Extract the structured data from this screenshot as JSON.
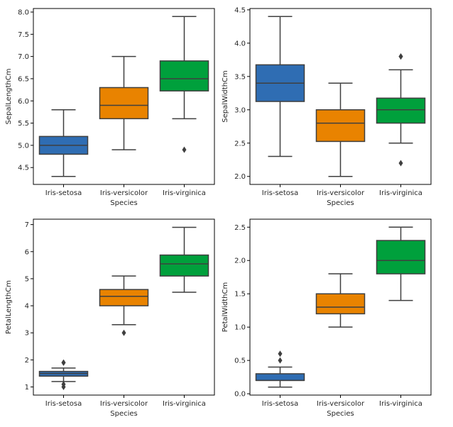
{
  "chart_data": [
    {
      "type": "box",
      "xlabel": "Species",
      "ylabel": "SepalLengthCm",
      "categories": [
        "Iris-setosa",
        "Iris-versicolor",
        "Iris-virginica"
      ],
      "ylim": [
        4.12,
        8.08
      ],
      "yticks": [
        4.5,
        5.0,
        5.5,
        6.0,
        6.5,
        7.0,
        7.5,
        8.0
      ],
      "yticklabels": [
        "4.5",
        "5.0",
        "5.5",
        "6.0",
        "6.5",
        "7.0",
        "7.5",
        "8.0"
      ],
      "boxes": [
        {
          "whislo": 4.3,
          "q1": 4.8,
          "med": 5.0,
          "q3": 5.2,
          "whishi": 5.8,
          "fliers": []
        },
        {
          "whislo": 4.9,
          "q1": 5.6,
          "med": 5.9,
          "q3": 6.3,
          "whishi": 7.0,
          "fliers": []
        },
        {
          "whislo": 5.6,
          "q1": 6.225,
          "med": 6.5,
          "q3": 6.9,
          "whishi": 7.9,
          "fliers": [
            4.9
          ]
        }
      ]
    },
    {
      "type": "box",
      "xlabel": "Species",
      "ylabel": "SepalWidthCm",
      "categories": [
        "Iris-setosa",
        "Iris-versicolor",
        "Iris-virginica"
      ],
      "ylim": [
        1.88,
        4.52
      ],
      "yticks": [
        2.0,
        2.5,
        3.0,
        3.5,
        4.0,
        4.5
      ],
      "yticklabels": [
        "2.0",
        "2.5",
        "3.0",
        "3.5",
        "4.0",
        "4.5"
      ],
      "boxes": [
        {
          "whislo": 2.3,
          "q1": 3.125,
          "med": 3.4,
          "q3": 3.675,
          "whishi": 4.4,
          "fliers": []
        },
        {
          "whislo": 2.0,
          "q1": 2.525,
          "med": 2.8,
          "q3": 3.0,
          "whishi": 3.4,
          "fliers": []
        },
        {
          "whislo": 2.5,
          "q1": 2.8,
          "med": 3.0,
          "q3": 3.175,
          "whishi": 3.6,
          "fliers": [
            3.8,
            3.8,
            2.2
          ]
        }
      ]
    },
    {
      "type": "box",
      "xlabel": "Species",
      "ylabel": "PetalLengthCm",
      "categories": [
        "Iris-setosa",
        "Iris-versicolor",
        "Iris-virginica"
      ],
      "ylim": [
        0.7,
        7.2
      ],
      "yticks": [
        1,
        2,
        3,
        4,
        5,
        6,
        7
      ],
      "yticklabels": [
        "1",
        "2",
        "3",
        "4",
        "5",
        "6",
        "7"
      ],
      "boxes": [
        {
          "whislo": 1.2,
          "q1": 1.4,
          "med": 1.5,
          "q3": 1.575,
          "whishi": 1.7,
          "fliers": [
            1.9,
            1.9,
            1.1,
            1.0
          ]
        },
        {
          "whislo": 3.3,
          "q1": 4.0,
          "med": 4.35,
          "q3": 4.6,
          "whishi": 5.1,
          "fliers": [
            3.0
          ]
        },
        {
          "whislo": 4.5,
          "q1": 5.1,
          "med": 5.55,
          "q3": 5.875,
          "whishi": 6.9,
          "fliers": []
        }
      ]
    },
    {
      "type": "box",
      "xlabel": "Species",
      "ylabel": "PetalWidthCm",
      "categories": [
        "Iris-setosa",
        "Iris-versicolor",
        "Iris-virginica"
      ],
      "ylim": [
        -0.02,
        2.62
      ],
      "yticks": [
        0.0,
        0.5,
        1.0,
        1.5,
        2.0,
        2.5
      ],
      "yticklabels": [
        "0.0",
        "0.5",
        "1.0",
        "1.5",
        "2.0",
        "2.5"
      ],
      "boxes": [
        {
          "whislo": 0.1,
          "q1": 0.2,
          "med": 0.2,
          "q3": 0.3,
          "whishi": 0.4,
          "fliers": [
            0.5,
            0.6
          ]
        },
        {
          "whislo": 1.0,
          "q1": 1.2,
          "med": 1.3,
          "q3": 1.5,
          "whishi": 1.8,
          "fliers": []
        },
        {
          "whislo": 1.4,
          "q1": 1.8,
          "med": 2.0,
          "q3": 2.3,
          "whishi": 2.5,
          "fliers": []
        }
      ]
    }
  ],
  "colors": {
    "setosa": "#3274a1",
    "versicolor": "#e1812c",
    "virginica": "#3a923a",
    "box_face_setosa": "#2f6db3",
    "box_face_versicolor": "#e98300",
    "box_face_virginica": "#00a03c",
    "line": "#3f3f3f",
    "axis": "#000000"
  }
}
